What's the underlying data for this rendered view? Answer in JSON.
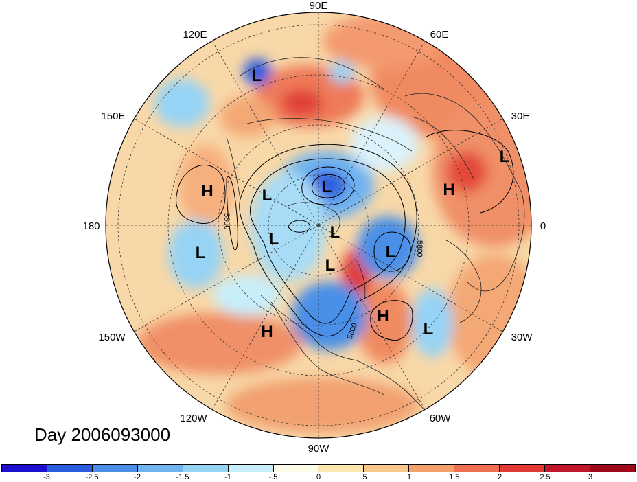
{
  "title": "Day 2006093000",
  "longitude_labels": [
    {
      "text": "90E",
      "lon": 90
    },
    {
      "text": "60E",
      "lon": 60
    },
    {
      "text": "30E",
      "lon": 30
    },
    {
      "text": "0",
      "lon": 0
    },
    {
      "text": "30W",
      "lon": -30
    },
    {
      "text": "60W",
      "lon": -60
    },
    {
      "text": "90W",
      "lon": -90
    },
    {
      "text": "120W",
      "lon": -120
    },
    {
      "text": "150W",
      "lon": -150
    },
    {
      "text": "180",
      "lon": 180
    },
    {
      "text": "150E",
      "lon": 150
    },
    {
      "text": "120E",
      "lon": 120
    }
  ],
  "pressure_centers": [
    {
      "type": "L",
      "label": "L"
    },
    {
      "type": "L",
      "label": "L"
    },
    {
      "type": "L",
      "label": "L"
    },
    {
      "type": "L",
      "label": "L"
    },
    {
      "type": "L",
      "label": "L"
    },
    {
      "type": "L",
      "label": "L"
    },
    {
      "type": "L",
      "label": "L"
    },
    {
      "type": "L",
      "label": "L"
    },
    {
      "type": "L",
      "label": "L"
    },
    {
      "type": "H",
      "label": "H"
    },
    {
      "type": "H",
      "label": "H"
    },
    {
      "type": "H",
      "label": "H"
    },
    {
      "type": "H",
      "label": "H"
    }
  ],
  "contour_labels": [
    "5800",
    "5800",
    "5800"
  ],
  "colorbar": {
    "colors": [
      "#1d0fd0",
      "#2a5ce0",
      "#4a8fe8",
      "#6fb3f0",
      "#96d3f5",
      "#c8eefa",
      "#fbfbe8",
      "#fbe6b0",
      "#f8c88a",
      "#f4a06a",
      "#ee7050",
      "#e23a35",
      "#c0182a",
      "#a0081c"
    ],
    "ticks": [
      "-3",
      "-2.5",
      "-2",
      "-1.5",
      "-1",
      "-.5",
      "0",
      ".5",
      "1",
      "1.5",
      "2",
      "2.5",
      "3"
    ]
  }
}
